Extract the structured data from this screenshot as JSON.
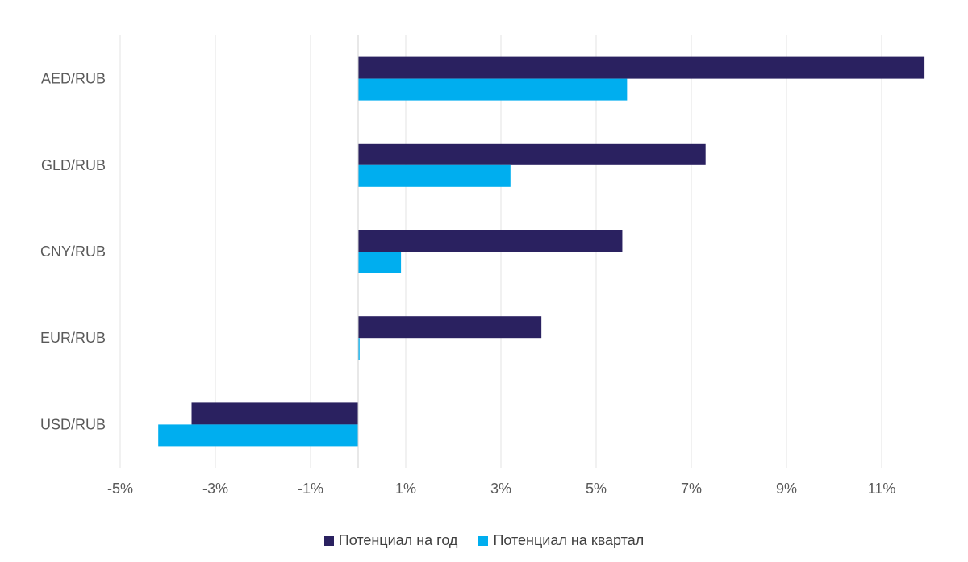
{
  "chart_data": {
    "type": "bar",
    "orientation": "horizontal",
    "categories": [
      "AED/RUB",
      "GLD/RUB",
      "CNY/RUB",
      "EUR/RUB",
      "USD/RUB"
    ],
    "series": [
      {
        "name": "Потенциал на год",
        "color": "#2a2160",
        "values": [
          11.9,
          7.3,
          5.55,
          3.85,
          -3.5
        ]
      },
      {
        "name": "Потенциал на квартал",
        "color": "#00aeef",
        "values": [
          5.65,
          3.2,
          0.9,
          0.03,
          -4.2
        ]
      }
    ],
    "xlim": [
      -5,
      12
    ],
    "x_ticks": [
      -5,
      -3,
      -1,
      1,
      3,
      5,
      7,
      9,
      11
    ],
    "x_tick_labels": [
      "-5%",
      "-3%",
      "-1%",
      "1%",
      "3%",
      "5%",
      "7%",
      "9%",
      "11%"
    ],
    "grid": "vertical",
    "legend_position": "bottom"
  }
}
